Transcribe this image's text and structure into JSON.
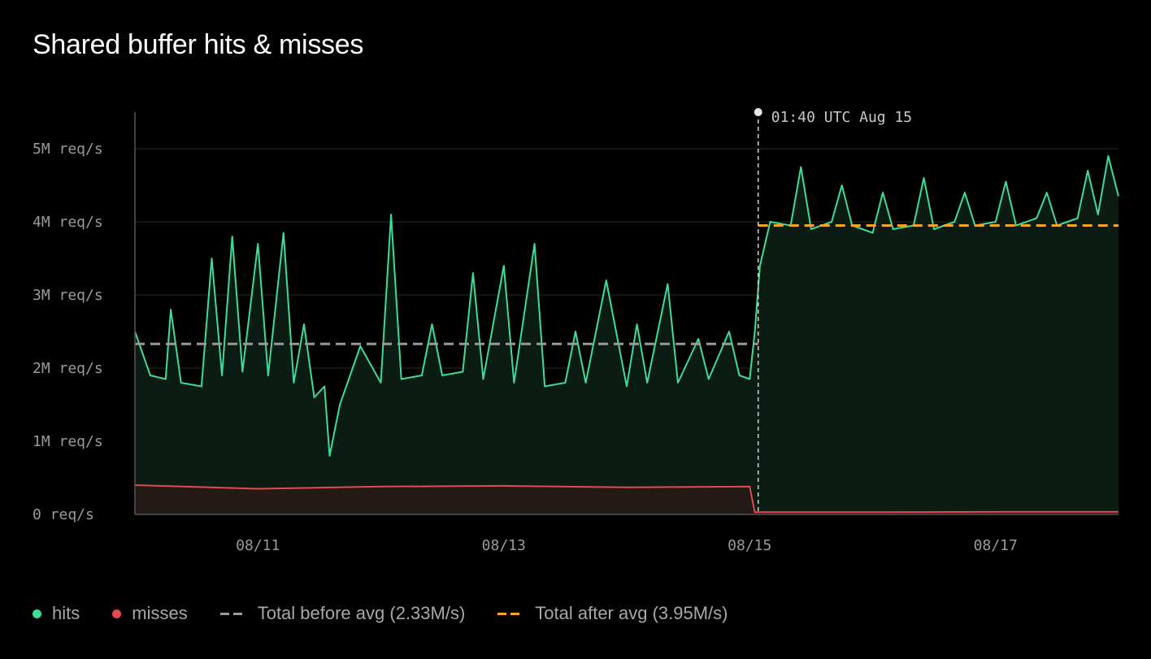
{
  "chart_data": {
    "type": "area",
    "title": "Shared buffer hits & misses",
    "x_range": [
      "2024-08-10T00:00",
      "2024-08-18T00:00"
    ],
    "x_ticks": [
      {
        "label": "08/11",
        "t": "2024-08-11T00:00"
      },
      {
        "label": "08/13",
        "t": "2024-08-13T00:00"
      },
      {
        "label": "08/15",
        "t": "2024-08-15T00:00"
      },
      {
        "label": "08/17",
        "t": "2024-08-17T00:00"
      }
    ],
    "ylim": [
      0,
      5500000
    ],
    "y_ticks": [
      {
        "label": "0 req/s",
        "value": 0
      },
      {
        "label": "1M req/s",
        "value": 1000000
      },
      {
        "label": "2M req/s",
        "value": 2000000
      },
      {
        "label": "3M req/s",
        "value": 3000000
      },
      {
        "label": "4M req/s",
        "value": 4000000
      },
      {
        "label": "5M req/s",
        "value": 5000000
      }
    ],
    "grid": true,
    "legend_position": "bottom-left",
    "marker": {
      "label": "01:40 UTC Aug 15",
      "t": "2024-08-15T01:40"
    },
    "series": [
      {
        "name": "hits",
        "color": "#3ddc97",
        "points": [
          [
            "2024-08-10T00:00",
            2500000
          ],
          [
            "2024-08-10T03:00",
            1900000
          ],
          [
            "2024-08-10T06:00",
            1850000
          ],
          [
            "2024-08-10T07:00",
            2800000
          ],
          [
            "2024-08-10T09:00",
            1800000
          ],
          [
            "2024-08-10T13:00",
            1750000
          ],
          [
            "2024-08-10T15:00",
            3500000
          ],
          [
            "2024-08-10T17:00",
            1900000
          ],
          [
            "2024-08-10T19:00",
            3800000
          ],
          [
            "2024-08-10T21:00",
            1950000
          ],
          [
            "2024-08-11T00:00",
            3700000
          ],
          [
            "2024-08-11T02:00",
            1900000
          ],
          [
            "2024-08-11T05:00",
            3850000
          ],
          [
            "2024-08-11T07:00",
            1800000
          ],
          [
            "2024-08-11T09:00",
            2600000
          ],
          [
            "2024-08-11T11:00",
            1600000
          ],
          [
            "2024-08-11T13:00",
            1750000
          ],
          [
            "2024-08-11T14:00",
            800000
          ],
          [
            "2024-08-11T16:00",
            1500000
          ],
          [
            "2024-08-11T20:00",
            2300000
          ],
          [
            "2024-08-12T00:00",
            1800000
          ],
          [
            "2024-08-12T02:00",
            4100000
          ],
          [
            "2024-08-12T04:00",
            1850000
          ],
          [
            "2024-08-12T08:00",
            1900000
          ],
          [
            "2024-08-12T10:00",
            2600000
          ],
          [
            "2024-08-12T12:00",
            1900000
          ],
          [
            "2024-08-12T16:00",
            1950000
          ],
          [
            "2024-08-12T18:00",
            3300000
          ],
          [
            "2024-08-12T20:00",
            1850000
          ],
          [
            "2024-08-13T00:00",
            3400000
          ],
          [
            "2024-08-13T02:00",
            1800000
          ],
          [
            "2024-08-13T06:00",
            3700000
          ],
          [
            "2024-08-13T08:00",
            1750000
          ],
          [
            "2024-08-13T12:00",
            1800000
          ],
          [
            "2024-08-13T14:00",
            2500000
          ],
          [
            "2024-08-13T16:00",
            1800000
          ],
          [
            "2024-08-13T20:00",
            3200000
          ],
          [
            "2024-08-14T00:00",
            1750000
          ],
          [
            "2024-08-14T02:00",
            2600000
          ],
          [
            "2024-08-14T04:00",
            1800000
          ],
          [
            "2024-08-14T08:00",
            3150000
          ],
          [
            "2024-08-14T10:00",
            1800000
          ],
          [
            "2024-08-14T14:00",
            2400000
          ],
          [
            "2024-08-14T16:00",
            1850000
          ],
          [
            "2024-08-14T20:00",
            2500000
          ],
          [
            "2024-08-14T22:00",
            1900000
          ],
          [
            "2024-08-15T00:00",
            1850000
          ],
          [
            "2024-08-15T01:00",
            2500000
          ],
          [
            "2024-08-15T02:00",
            3400000
          ],
          [
            "2024-08-15T04:00",
            4000000
          ],
          [
            "2024-08-15T08:00",
            3950000
          ],
          [
            "2024-08-15T10:00",
            4750000
          ],
          [
            "2024-08-15T12:00",
            3900000
          ],
          [
            "2024-08-15T16:00",
            4000000
          ],
          [
            "2024-08-15T18:00",
            4500000
          ],
          [
            "2024-08-15T20:00",
            3950000
          ],
          [
            "2024-08-16T00:00",
            3850000
          ],
          [
            "2024-08-16T02:00",
            4400000
          ],
          [
            "2024-08-16T04:00",
            3900000
          ],
          [
            "2024-08-16T08:00",
            3950000
          ],
          [
            "2024-08-16T10:00",
            4600000
          ],
          [
            "2024-08-16T12:00",
            3900000
          ],
          [
            "2024-08-16T16:00",
            4000000
          ],
          [
            "2024-08-16T18:00",
            4400000
          ],
          [
            "2024-08-16T20:00",
            3950000
          ],
          [
            "2024-08-17T00:00",
            4000000
          ],
          [
            "2024-08-17T02:00",
            4550000
          ],
          [
            "2024-08-17T04:00",
            3950000
          ],
          [
            "2024-08-17T08:00",
            4050000
          ],
          [
            "2024-08-17T10:00",
            4400000
          ],
          [
            "2024-08-17T12:00",
            3950000
          ],
          [
            "2024-08-17T16:00",
            4050000
          ],
          [
            "2024-08-17T18:00",
            4700000
          ],
          [
            "2024-08-17T20:00",
            4100000
          ],
          [
            "2024-08-17T22:00",
            4900000
          ],
          [
            "2024-08-18T00:00",
            4350000
          ]
        ]
      },
      {
        "name": "misses",
        "color": "#e5484d",
        "points": [
          [
            "2024-08-10T00:00",
            400000
          ],
          [
            "2024-08-11T00:00",
            350000
          ],
          [
            "2024-08-12T00:00",
            380000
          ],
          [
            "2024-08-13T00:00",
            390000
          ],
          [
            "2024-08-14T00:00",
            370000
          ],
          [
            "2024-08-15T00:00",
            380000
          ],
          [
            "2024-08-15T01:00",
            30000
          ],
          [
            "2024-08-16T00:00",
            30000
          ],
          [
            "2024-08-17T00:00",
            35000
          ],
          [
            "2024-08-18T00:00",
            35000
          ]
        ]
      }
    ],
    "reference_lines": [
      {
        "name": "Total before avg (2.33M/s)",
        "value": 2330000,
        "from": "2024-08-10T00:00",
        "to": "2024-08-15T01:40",
        "color": "#9a9a9a"
      },
      {
        "name": "Total after avg (3.95M/s)",
        "value": 3950000,
        "from": "2024-08-15T01:40",
        "to": "2024-08-18T00:00",
        "color": "#f5a524"
      }
    ]
  }
}
